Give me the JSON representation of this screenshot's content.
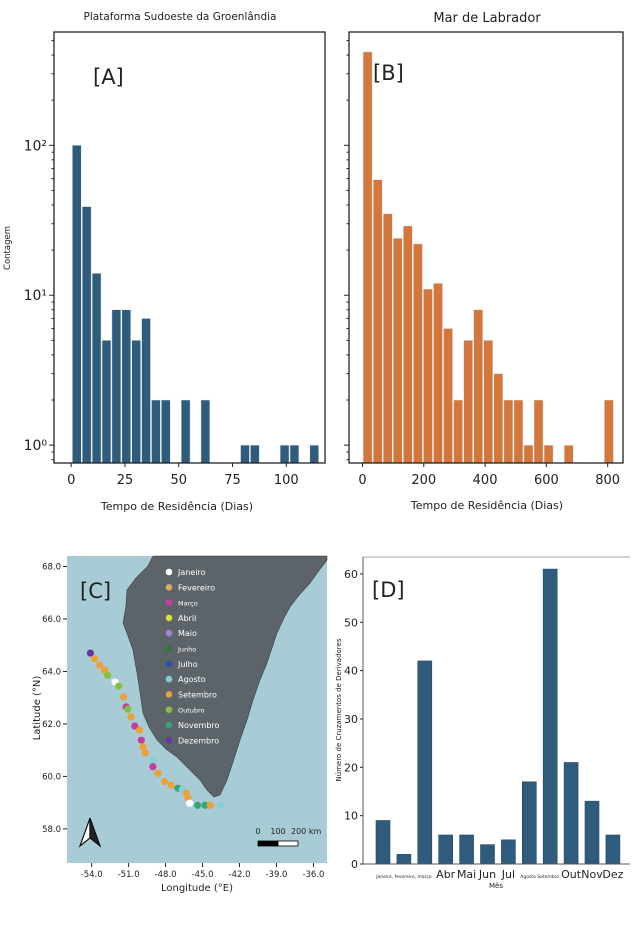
{
  "chart_data": [
    {
      "panel": "[A]",
      "type": "bar",
      "title": "Plataforma Sudoeste da Groenlândia",
      "xlabel": "Tempo de Residência (Dias)",
      "ylabel": "Contagem",
      "yscale": "log",
      "ylim": [
        0.76,
        570
      ],
      "xlim": [
        -8,
        118
      ],
      "xticks": [
        0,
        25,
        50,
        75,
        100
      ],
      "yticks": [
        1,
        10,
        100
      ],
      "ytick_labels": [
        "10⁰",
        "10¹",
        "10²"
      ],
      "bin_start": 0.3,
      "bin_width": 4.6,
      "values": [
        100,
        39,
        14,
        5,
        8,
        8,
        5,
        7,
        2,
        2,
        0,
        2,
        0,
        2,
        0,
        0,
        0,
        1,
        1,
        0,
        0,
        1,
        1,
        0,
        1
      ],
      "color": "#2f5b7c",
      "grid": false
    },
    {
      "panel": "[B]",
      "type": "bar",
      "title": "Mar de Labrador",
      "xlabel": "Tempo de Residência (Dias)",
      "yscale": "log",
      "ylim": [
        0.76,
        570
      ],
      "xlim": [
        -44,
        850
      ],
      "xticks": [
        0,
        200,
        400,
        600,
        800
      ],
      "bin_start": 0.4,
      "bin_width": 32.8,
      "values": [
        420,
        59,
        35,
        24,
        29,
        22,
        11,
        12,
        6,
        2,
        5,
        8,
        5,
        3,
        2,
        2,
        1,
        2,
        1,
        0,
        1,
        0,
        0,
        0,
        2
      ],
      "color": "#d4773c",
      "grid": false
    },
    {
      "panel": "[C]",
      "type": "scatter",
      "xlabel": "Longitude (°E)",
      "ylabel": "Latitude (°N)",
      "xlim": [
        -56.0,
        -34.9
      ],
      "ylim": [
        56.7,
        68.4
      ],
      "xticks": [
        -54,
        -51,
        -48,
        -45,
        -42,
        -39,
        -36
      ],
      "xtick_labels": [
        "-54.0",
        "-51.0",
        "-48.0",
        "-45.0",
        "-42.0",
        "-39.0",
        "-36.0"
      ],
      "yticks": [
        58,
        60,
        62,
        64,
        66,
        68
      ],
      "ytick_labels": [
        "58.0",
        "60.0",
        "62.0",
        "64.0",
        "66.0",
        "68.0"
      ],
      "legend_placement": "top-center",
      "legend": [
        {
          "label": "Janeiro",
          "color": "#ffffff"
        },
        {
          "label": "Fevereiro",
          "color": "#d9aa6a"
        },
        {
          "label": "Março",
          "color": "#c2409c"
        },
        {
          "label": "Abril",
          "color": "#d6df3c"
        },
        {
          "label": "Maio",
          "color": "#a484cc"
        },
        {
          "label": "Junho",
          "color": "#2f7a3a"
        },
        {
          "label": "Julho",
          "color": "#3550a8"
        },
        {
          "label": "Agosto",
          "color": "#86cfd6"
        },
        {
          "label": "Setembro",
          "color": "#eea03a"
        },
        {
          "label": "Outubro",
          "color": "#84c03e"
        },
        {
          "label": "Novembro",
          "color": "#36a478"
        },
        {
          "label": "Dezembro",
          "color": "#6636a0"
        }
      ],
      "points": [
        {
          "lon": -54.1,
          "lat": 64.7,
          "month": "Dezembro"
        },
        {
          "lon": -53.76,
          "lat": 64.49,
          "month": "Setembro"
        },
        {
          "lon": -53.35,
          "lat": 64.24,
          "month": "Setembro"
        },
        {
          "lon": -52.95,
          "lat": 64.05,
          "month": "Setembro"
        },
        {
          "lon": -52.7,
          "lat": 63.85,
          "month": "Outubro"
        },
        {
          "lon": -52.1,
          "lat": 63.6,
          "month": "Janeiro"
        },
        {
          "lon": -51.8,
          "lat": 63.44,
          "month": "Outubro"
        },
        {
          "lon": -51.4,
          "lat": 63.03,
          "month": "Setembro"
        },
        {
          "lon": -51.2,
          "lat": 62.65,
          "month": "Março"
        },
        {
          "lon": -51.06,
          "lat": 62.56,
          "month": "Outubro"
        },
        {
          "lon": -50.8,
          "lat": 62.27,
          "month": "Setembro"
        },
        {
          "lon": -50.5,
          "lat": 61.92,
          "month": "Março"
        },
        {
          "lon": -50.1,
          "lat": 61.76,
          "month": "Setembro"
        },
        {
          "lon": -49.97,
          "lat": 61.38,
          "month": "Março"
        },
        {
          "lon": -49.84,
          "lat": 61.13,
          "month": "Setembro"
        },
        {
          "lon": -49.65,
          "lat": 60.9,
          "month": "Setembro"
        },
        {
          "lon": -49.08,
          "lat": 60.6,
          "month": "Agosto"
        },
        {
          "lon": -49.03,
          "lat": 60.37,
          "month": "Março"
        },
        {
          "lon": -48.62,
          "lat": 60.12,
          "month": "Setembro"
        },
        {
          "lon": -48.08,
          "lat": 59.8,
          "month": "Setembro"
        },
        {
          "lon": -47.54,
          "lat": 59.67,
          "month": "Setembro"
        },
        {
          "lon": -47.0,
          "lat": 59.55,
          "month": "Novembro"
        },
        {
          "lon": -46.65,
          "lat": 59.5,
          "month": "Agosto"
        },
        {
          "lon": -46.3,
          "lat": 59.36,
          "month": "Setembro"
        },
        {
          "lon": -46.2,
          "lat": 59.17,
          "month": "Setembro"
        },
        {
          "lon": -46.05,
          "lat": 58.98,
          "month": "Janeiro"
        },
        {
          "lon": -45.4,
          "lat": 58.9,
          "month": "Novembro"
        },
        {
          "lon": -44.8,
          "lat": 58.9,
          "month": "Novembro"
        },
        {
          "lon": -44.37,
          "lat": 58.9,
          "month": "Setembro"
        },
        {
          "lon": -43.54,
          "lat": 58.9,
          "month": "Agosto"
        }
      ],
      "scale_bar_labels": [
        "0",
        "100",
        "200 km"
      ],
      "land_color": "#5c6469",
      "sea_color": "#a8ccd5"
    },
    {
      "panel": "[D]",
      "type": "bar",
      "xlabel": "Mês",
      "ylabel": "Número de Cruzamentos de Derivadores",
      "ylim": [
        0,
        63.5
      ],
      "yticks": [
        0,
        10,
        20,
        30,
        40,
        50,
        60
      ],
      "categories": [
        "Jan",
        "Fev",
        "Mar",
        "Abr",
        "Mai",
        "Jun",
        "Jul",
        "Ago",
        "Set",
        "Out",
        "Nov",
        "Dez"
      ],
      "tick_labels": [
        {
          "label": "Janeiro, fevereiro, março",
          "span": [
            0,
            2
          ],
          "small": true
        },
        {
          "label": "Abr",
          "span": [
            3,
            3
          ]
        },
        {
          "label": "Mai",
          "span": [
            4,
            4
          ]
        },
        {
          "label": "Jun",
          "span": [
            5,
            5
          ]
        },
        {
          "label": "Jul",
          "span": [
            6,
            6
          ]
        },
        {
          "label": "Agosto Setembro",
          "span": [
            7,
            8
          ],
          "small": true
        },
        {
          "label": "Out",
          "span": [
            9,
            9
          ]
        },
        {
          "label": "Nov",
          "span": [
            10,
            10
          ]
        },
        {
          "label": "Dez",
          "span": [
            11,
            11
          ]
        }
      ],
      "values": [
        9,
        2,
        42,
        6,
        6,
        4,
        5,
        17,
        61,
        21,
        13,
        6
      ],
      "color": "#2f5b7c",
      "grid": false
    }
  ]
}
